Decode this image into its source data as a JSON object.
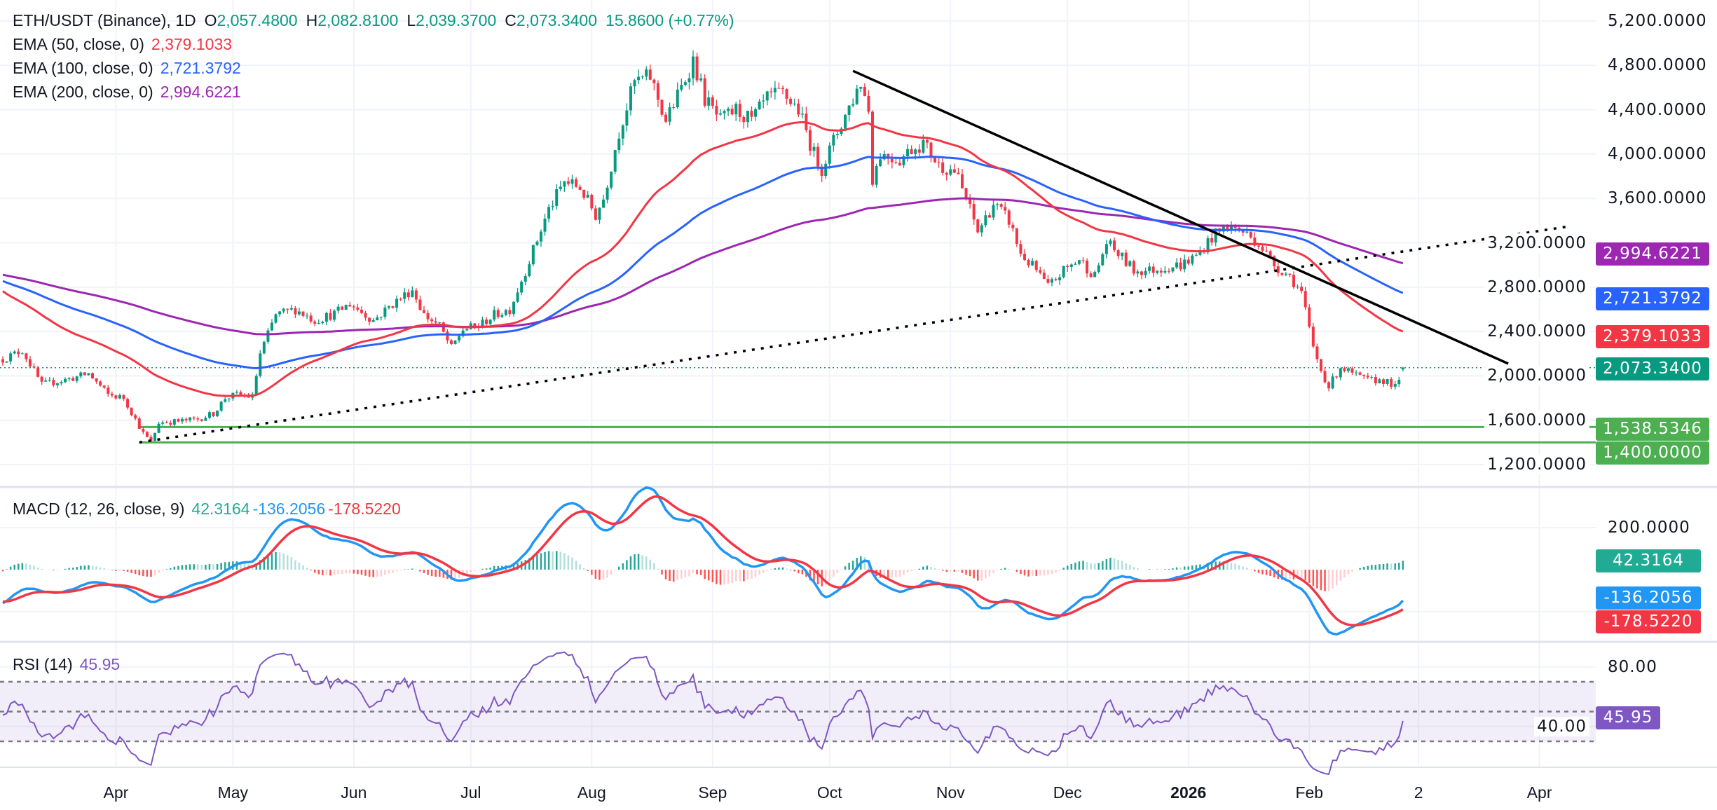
{
  "legend": {
    "symbol": "ETH/USDT (Binance), 1D",
    "o_label": "O",
    "o": "2,057.4800",
    "h_label": "H",
    "h": "2,082.8100",
    "l_label": "L",
    "l": "2,039.3700",
    "c_label": "C",
    "c": "2,073.3400",
    "change": "15.8600 (+0.77%)",
    "ema50_label": "EMA (50, close, 0)",
    "ema50": "2,379.1033",
    "ema100_label": "EMA (100, close, 0)",
    "ema100": "2,721.3792",
    "ema200_label": "EMA (200, close, 0)",
    "ema200": "2,994.6221",
    "macd_label": "MACD (12, 26, close, 9)",
    "macd_hist": "42.3164",
    "macd_line": "-136.2056",
    "macd_signal": "-178.5220",
    "rsi_label": "RSI (14)",
    "rsi": "45.95"
  },
  "tags": {
    "ema200": "2,994.6221",
    "ema100": "2,721.3792",
    "ema50": "2,379.1033",
    "last": "2,073.3400",
    "support1": "1,538.5346",
    "support2": "1,400.0000",
    "macd_hist": "42.3164",
    "macd_line": "-136.2056",
    "macd_signal": "-178.5220",
    "rsi": "45.95"
  },
  "colors": {
    "up": "#089981",
    "down": "#f23645",
    "ema50": "#f23645",
    "ema100": "#2962ff",
    "ema200": "#9c27b0",
    "macd": "#2196f3",
    "signal": "#f23645",
    "rsi": "#7e57c2",
    "support": "#4caf50",
    "last": "#089981"
  },
  "chart_data": {
    "type": "candlestick",
    "title": "ETH/USDT (Binance), 1D",
    "price_axis": {
      "ticks": [
        "5,200.0000",
        "4,800.0000",
        "4,400.0000",
        "4,000.0000",
        "3,600.0000",
        "3,200.0000",
        "2,800.0000",
        "2,400.0000",
        "2,000.0000",
        "1,600.0000",
        "1,200.0000"
      ],
      "values": [
        5200,
        4800,
        4400,
        4000,
        3600,
        3200,
        2800,
        2400,
        2000,
        1600,
        1200
      ],
      "range": [
        1130,
        5300
      ]
    },
    "macd_axis": {
      "ticks": [
        "200.0000"
      ],
      "values": [
        200
      ]
    },
    "rsi_axis": {
      "ticks": [
        "80.00",
        "40.00"
      ],
      "values": [
        80,
        40
      ],
      "bands": [
        70,
        50,
        30
      ]
    },
    "time_axis": [
      {
        "label": "Apr",
        "day": 29
      },
      {
        "label": "May",
        "day": 59
      },
      {
        "label": "Jun",
        "day": 90
      },
      {
        "label": "Jul",
        "day": 120
      },
      {
        "label": "Aug",
        "day": 151
      },
      {
        "label": "Sep",
        "day": 182
      },
      {
        "label": "Oct",
        "day": 212
      },
      {
        "label": "Nov",
        "day": 243
      },
      {
        "label": "Dec",
        "day": 273
      },
      {
        "label": "2026",
        "day": 304,
        "bold": true
      },
      {
        "label": "Feb",
        "day": 335
      },
      {
        "label": "2",
        "day": 363
      },
      {
        "label": "Apr",
        "day": 394
      }
    ],
    "close_anchors": [
      [
        0,
        2150
      ],
      [
        5,
        2230
      ],
      [
        10,
        1920
      ],
      [
        18,
        1980
      ],
      [
        22,
        2020
      ],
      [
        27,
        1830
      ],
      [
        31,
        1800
      ],
      [
        36,
        1480
      ],
      [
        38,
        1400
      ],
      [
        40,
        1580
      ],
      [
        45,
        1590
      ],
      [
        50,
        1610
      ],
      [
        54,
        1660
      ],
      [
        57,
        1800
      ],
      [
        60,
        1830
      ],
      [
        64,
        1810
      ],
      [
        66,
        2200
      ],
      [
        70,
        2550
      ],
      [
        75,
        2600
      ],
      [
        80,
        2500
      ],
      [
        85,
        2560
      ],
      [
        89,
        2650
      ],
      [
        95,
        2500
      ],
      [
        100,
        2650
      ],
      [
        105,
        2780
      ],
      [
        108,
        2550
      ],
      [
        112,
        2450
      ],
      [
        115,
        2250
      ],
      [
        118,
        2420
      ],
      [
        122,
        2450
      ],
      [
        126,
        2550
      ],
      [
        130,
        2600
      ],
      [
        134,
        2950
      ],
      [
        140,
        3500
      ],
      [
        144,
        3750
      ],
      [
        148,
        3700
      ],
      [
        152,
        3450
      ],
      [
        154,
        3600
      ],
      [
        158,
        4200
      ],
      [
        162,
        4650
      ],
      [
        166,
        4700
      ],
      [
        170,
        4300
      ],
      [
        174,
        4600
      ],
      [
        177,
        4850
      ],
      [
        180,
        4500
      ],
      [
        184,
        4300
      ],
      [
        188,
        4400
      ],
      [
        192,
        4300
      ],
      [
        196,
        4500
      ],
      [
        200,
        4550
      ],
      [
        204,
        4400
      ],
      [
        208,
        4000
      ],
      [
        210,
        3870
      ],
      [
        214,
        4200
      ],
      [
        218,
        4500
      ],
      [
        220,
        4650
      ],
      [
        222,
        4400
      ],
      [
        223,
        3780
      ],
      [
        225,
        4000
      ],
      [
        230,
        3950
      ],
      [
        233,
        4050
      ],
      [
        236,
        4100
      ],
      [
        240,
        3900
      ],
      [
        244,
        3850
      ],
      [
        247,
        3600
      ],
      [
        250,
        3300
      ],
      [
        254,
        3550
      ],
      [
        258,
        3400
      ],
      [
        261,
        3100
      ],
      [
        265,
        2950
      ],
      [
        268,
        2800
      ],
      [
        272,
        2950
      ],
      [
        276,
        3050
      ],
      [
        280,
        2900
      ],
      [
        283,
        3200
      ],
      [
        286,
        3100
      ],
      [
        290,
        2950
      ],
      [
        294,
        2950
      ],
      [
        298,
        2980
      ],
      [
        302,
        3000
      ],
      [
        306,
        3080
      ],
      [
        310,
        3250
      ],
      [
        314,
        3350
      ],
      [
        318,
        3300
      ],
      [
        322,
        3200
      ],
      [
        326,
        3000
      ],
      [
        330,
        2900
      ],
      [
        333,
        2750
      ],
      [
        336,
        2250
      ],
      [
        338,
        2050
      ],
      [
        340,
        1900
      ],
      [
        343,
        2080
      ],
      [
        347,
        2000
      ],
      [
        350,
        1960
      ],
      [
        354,
        1960
      ],
      [
        357,
        1900
      ],
      [
        358,
        1940
      ]
    ],
    "last_candle": {
      "day": 359,
      "open": 2057.48,
      "high": 2082.81,
      "low": 2039.37,
      "close": 2073.34
    },
    "ema_start": {
      "ema50": 2790,
      "ema100": 2870,
      "ema200": 2920,
      "ema12": 2150,
      "ema26": 2320,
      "signal": -150
    },
    "ema_last": {
      "ema50": 2379.1033,
      "ema100": 2721.3792,
      "ema200": 2994.6221
    },
    "macd_last": {
      "histogram": 42.3164,
      "macd": -136.2056,
      "signal": -178.522
    },
    "rsi_last": 45.95,
    "horizontal_levels": [
      1538.5346,
      1400
    ],
    "last_price": 2073.34,
    "trendlines": [
      {
        "name": "downtrend",
        "style": "solid",
        "from": {
          "day": 218,
          "price": 4750
        },
        "to": {
          "day": 386,
          "price": 2110
        }
      },
      {
        "name": "uptrend",
        "style": "dotted",
        "from": {
          "day": 35,
          "price": 1400
        },
        "to": {
          "day": 402,
          "price": 3350
        }
      }
    ]
  }
}
